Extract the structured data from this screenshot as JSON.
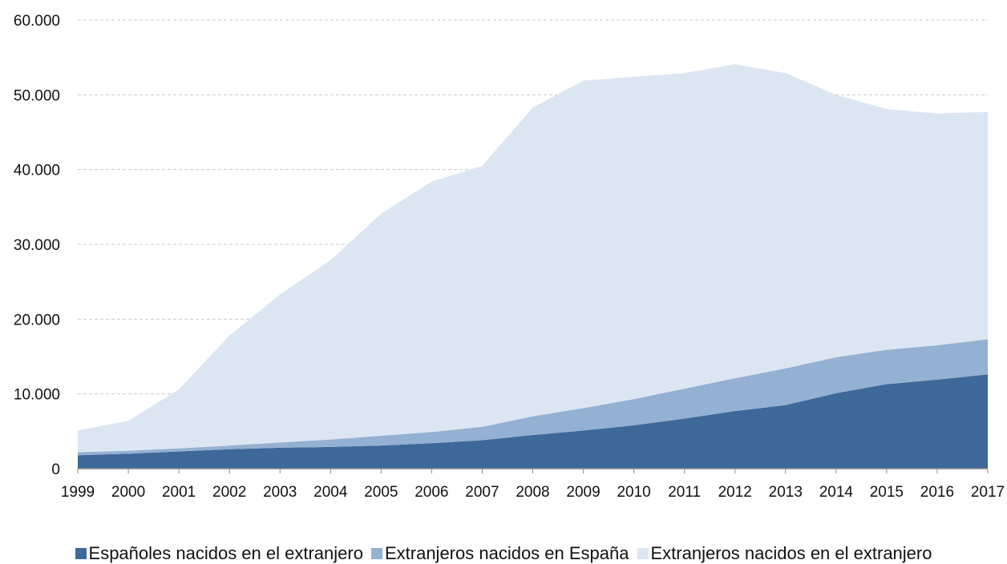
{
  "chart_data": {
    "type": "area",
    "stacked": true,
    "x": [
      "1999",
      "2000",
      "2001",
      "2002",
      "2003",
      "2004",
      "2005",
      "2006",
      "2007",
      "2008",
      "2009",
      "2010",
      "2011",
      "2012",
      "2013",
      "2014",
      "2015",
      "2016",
      "2017"
    ],
    "series": [
      {
        "name": "Españoles nacidos en el extranjero",
        "color": "#3e6899",
        "values": [
          1800,
          2000,
          2300,
          2600,
          2800,
          2900,
          3100,
          3400,
          3800,
          4500,
          5100,
          5800,
          6700,
          7700,
          8500,
          10100,
          11300,
          11900,
          12600
        ]
      },
      {
        "name": "Extranjeros nacidos en España",
        "color": "#94b0d3",
        "values": [
          400,
          400,
          400,
          500,
          700,
          1000,
          1300,
          1500,
          1800,
          2500,
          3000,
          3500,
          4000,
          4400,
          4900,
          4800,
          4600,
          4600,
          4700
        ]
      },
      {
        "name": "Extranjeros nacidos en el extranjero",
        "color": "#dce6f2",
        "values": [
          2900,
          4000,
          7900,
          14700,
          19800,
          24000,
          29700,
          33500,
          34900,
          41300,
          43800,
          43100,
          42200,
          42000,
          39500,
          35100,
          32200,
          31000,
          30400
        ]
      }
    ],
    "ylim": [
      0,
      60000
    ],
    "yticks": [
      0,
      10000,
      20000,
      30000,
      40000,
      50000,
      60000
    ],
    "ytick_labels": [
      "0",
      "10.000",
      "20.000",
      "30.000",
      "40.000",
      "50.000",
      "60.000"
    ],
    "grid": true,
    "legend_position": "bottom",
    "gridline_color": "#c8c8c8"
  }
}
